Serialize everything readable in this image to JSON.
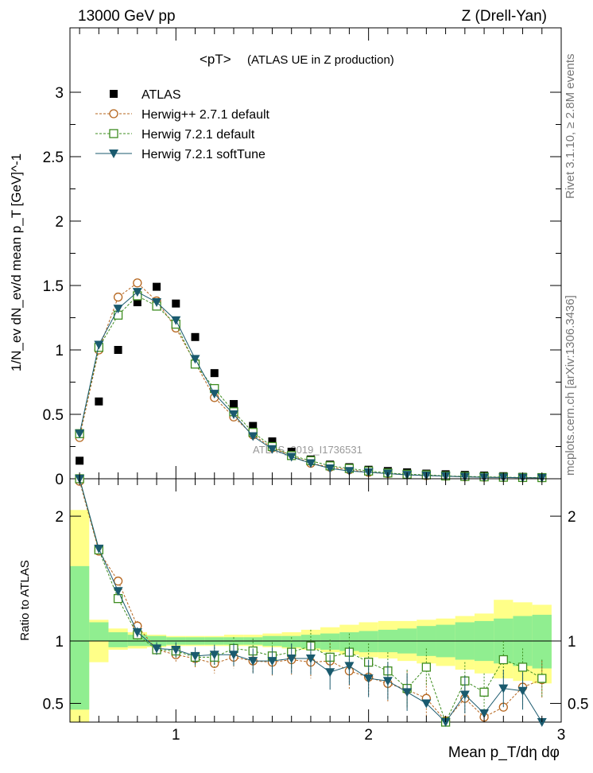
{
  "header": {
    "left": "13000 GeV pp",
    "right": "Z (Drell-Yan)"
  },
  "side": {
    "rivet": "Rivet 3.1.10, ≥ 2.8M events",
    "mcplots": "mcplots.cern.ch [arXiv:1306.3436]"
  },
  "chart_data": [
    {
      "type": "scatter",
      "title": "<pT>",
      "subtitle": "(ATLAS UE in Z production)",
      "watermark": "ATLAS_2019_I1736531",
      "ylabel": "1/N_ev dN_ev/d mean p_T [GeV]^-1",
      "xlim": [
        0.45,
        3.0
      ],
      "ylim": [
        0,
        3.5
      ],
      "x_ticks": [
        1,
        2,
        3
      ],
      "y_ticks": [
        0,
        0.5,
        1,
        1.5,
        2,
        2.5,
        3
      ],
      "y_tick_labels": [
        "0",
        "0.5",
        "1",
        "1.5",
        "2",
        "2.5",
        "3"
      ],
      "legend_position": "top-left",
      "x": [
        0.5,
        0.6,
        0.7,
        0.8,
        0.9,
        1.0,
        1.1,
        1.2,
        1.3,
        1.4,
        1.5,
        1.6,
        1.7,
        1.8,
        1.9,
        2.0,
        2.1,
        2.2,
        2.3,
        2.4,
        2.5,
        2.6,
        2.7,
        2.8,
        2.9
      ],
      "series": [
        {
          "name": "ATLAS",
          "color": "#000000",
          "marker": "square",
          "values": [
            0.14,
            0.6,
            1.0,
            1.37,
            1.49,
            1.36,
            1.1,
            0.82,
            0.58,
            0.41,
            0.29,
            0.21,
            0.15,
            0.11,
            0.09,
            0.07,
            0.06,
            0.05,
            0.04,
            0.035,
            0.03,
            0.025,
            0.02,
            0.015,
            0.012
          ]
        },
        {
          "name": "Herwig++ 2.7.1 default",
          "color": "#b5651d",
          "marker": "circle",
          "values": [
            0.32,
            1.0,
            1.41,
            1.52,
            1.38,
            1.17,
            0.9,
            0.63,
            0.48,
            0.34,
            0.24,
            0.18,
            0.12,
            0.09,
            0.07,
            0.05,
            0.04,
            0.03,
            0.025,
            0.02,
            0.015,
            0.012,
            0.01,
            0.008,
            0.008
          ]
        },
        {
          "name": "Herwig 7.2.1 default",
          "color": "#3d8c1f",
          "marker": "open-square",
          "values": [
            0.35,
            1.02,
            1.27,
            1.42,
            1.34,
            1.2,
            0.89,
            0.7,
            0.52,
            0.36,
            0.25,
            0.18,
            0.14,
            0.1,
            0.08,
            0.06,
            0.045,
            0.035,
            0.03,
            0.022,
            0.018,
            0.015,
            0.012,
            0.01,
            0.009
          ]
        },
        {
          "name": "Herwig 7.2.1 softTune",
          "color": "#1a5a6e",
          "marker": "triangle-down",
          "values": [
            0.35,
            1.04,
            1.32,
            1.45,
            1.37,
            1.23,
            0.93,
            0.66,
            0.5,
            0.33,
            0.23,
            0.17,
            0.12,
            0.08,
            0.06,
            0.05,
            0.04,
            0.03,
            0.025,
            0.02,
            0.015,
            0.011,
            0.01,
            0.008,
            0.007
          ]
        }
      ]
    },
    {
      "type": "line",
      "ylabel": "Ratio to ATLAS",
      "xlabel": "Mean p_T/dη dφ",
      "xlim": [
        0.45,
        3.0
      ],
      "ylim": [
        0.35,
        2.3
      ],
      "x_ticks": [
        1,
        2,
        3
      ],
      "y_ticks": [
        0.5,
        1,
        2
      ],
      "y_tick_labels": [
        "0.5",
        "1",
        "2"
      ],
      "reference_line": 1,
      "x": [
        0.5,
        0.6,
        0.7,
        0.8,
        0.9,
        1.0,
        1.1,
        1.2,
        1.3,
        1.4,
        1.5,
        1.6,
        1.7,
        1.8,
        1.9,
        2.0,
        2.1,
        2.2,
        2.3,
        2.4,
        2.5,
        2.6,
        2.7,
        2.8,
        2.9
      ],
      "band_stat": {
        "color": "#90ee90",
        "low": [
          0.45,
          1.0,
          0.95,
          0.96,
          0.96,
          0.97,
          0.97,
          0.97,
          0.97,
          0.97,
          0.96,
          0.95,
          0.94,
          0.93,
          0.92,
          0.91,
          0.91,
          0.9,
          0.88,
          0.87,
          0.85,
          0.84,
          0.82,
          0.8,
          0.78
        ],
        "high": [
          1.6,
          1.15,
          1.07,
          1.05,
          1.04,
          1.03,
          1.03,
          1.03,
          1.03,
          1.03,
          1.04,
          1.04,
          1.05,
          1.06,
          1.07,
          1.08,
          1.09,
          1.1,
          1.12,
          1.13,
          1.15,
          1.16,
          1.18,
          1.2,
          1.21
        ]
      },
      "band_total": {
        "color": "#ffff88",
        "low": [
          0.35,
          0.83,
          0.93,
          0.94,
          0.95,
          0.96,
          0.96,
          0.96,
          0.96,
          0.96,
          0.95,
          0.94,
          0.93,
          0.91,
          0.89,
          0.87,
          0.86,
          0.84,
          0.82,
          0.8,
          0.77,
          0.74,
          0.7,
          0.68,
          0.66
        ],
        "high": [
          2.05,
          1.17,
          1.1,
          1.07,
          1.05,
          1.04,
          1.04,
          1.04,
          1.05,
          1.05,
          1.06,
          1.07,
          1.09,
          1.11,
          1.13,
          1.15,
          1.16,
          1.16,
          1.17,
          1.18,
          1.2,
          1.22,
          1.33,
          1.31,
          1.29
        ]
      },
      "series": [
        {
          "name": "Herwig++ 2.7.1 default",
          "color": "#b5651d",
          "marker": "circle",
          "values": [
            2.28,
            1.72,
            1.48,
            1.12,
            0.93,
            0.89,
            0.86,
            0.82,
            0.87,
            0.84,
            0.83,
            0.85,
            0.83,
            0.84,
            0.76,
            0.71,
            0.66,
            0.61,
            0.54,
            0.36,
            0.54,
            0.39,
            0.47,
            0.63,
            0.69
          ]
        },
        {
          "name": "Herwig 7.2.1 default",
          "color": "#3d8c1f",
          "marker": "open-square",
          "values": [
            2.45,
            1.73,
            1.34,
            1.05,
            0.93,
            0.92,
            0.87,
            0.87,
            0.94,
            0.92,
            0.88,
            0.91,
            0.96,
            0.87,
            0.91,
            0.83,
            0.76,
            0.62,
            0.79,
            0.35,
            0.68,
            0.59,
            0.85,
            0.79,
            0.7
          ]
        },
        {
          "name": "Herwig 7.2.1 softTune",
          "color": "#1a5a6e",
          "marker": "triangle-down",
          "values": [
            2.5,
            1.74,
            1.4,
            1.07,
            0.94,
            0.93,
            0.88,
            0.89,
            0.89,
            0.84,
            0.84,
            0.86,
            0.86,
            0.75,
            0.8,
            0.7,
            0.68,
            0.59,
            0.5,
            0.35,
            0.57,
            0.42,
            0.62,
            0.6,
            0.35
          ]
        }
      ]
    }
  ]
}
